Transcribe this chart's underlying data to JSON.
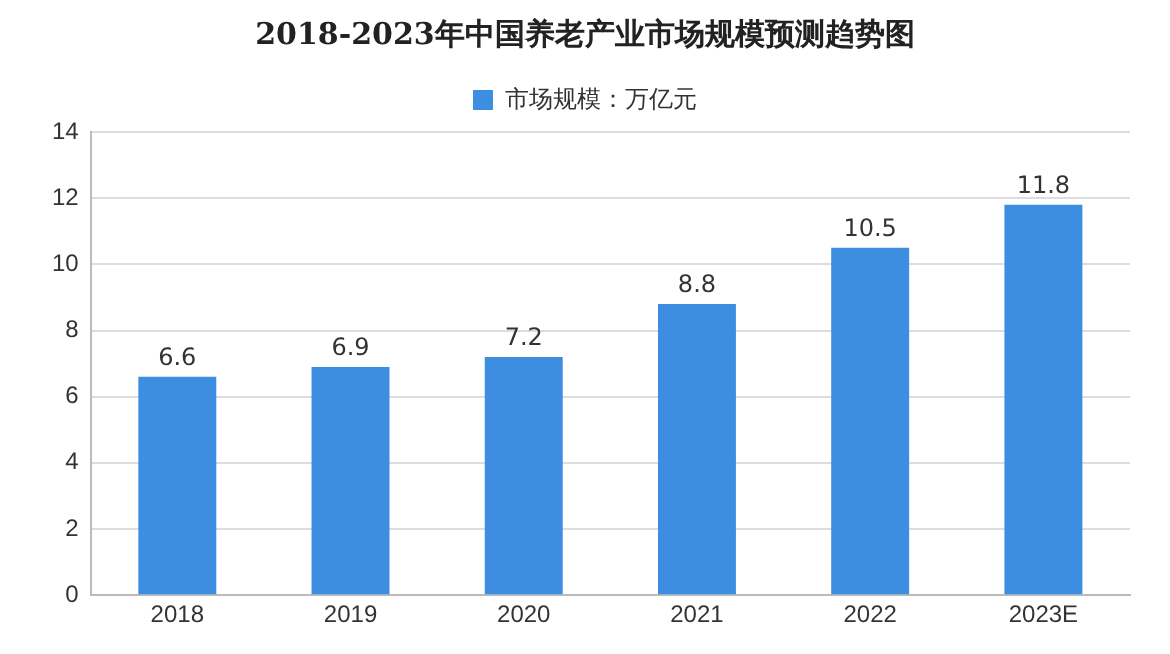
{
  "chart_data": {
    "type": "bar",
    "title": "2018-2023年中国养老产业市场规模预测趋势图",
    "categories": [
      "2018",
      "2019",
      "2020",
      "2021",
      "2022",
      "2023E"
    ],
    "series": [
      {
        "name": "市场规模：万亿元",
        "color": "#3d8ee0",
        "values": [
          6.6,
          6.9,
          7.2,
          8.8,
          10.5,
          11.8
        ]
      }
    ],
    "ylim": [
      0,
      14
    ],
    "yticks": [
      0,
      2,
      4,
      6,
      8,
      10,
      12,
      14
    ],
    "grid": "y",
    "legend": "top",
    "data_labels": true
  }
}
